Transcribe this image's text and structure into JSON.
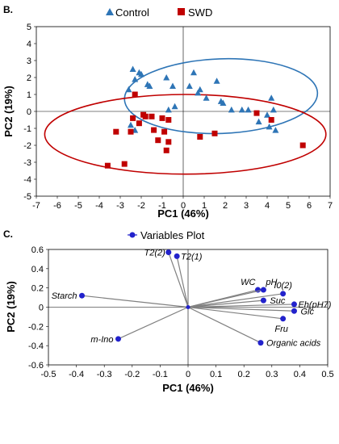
{
  "panel_b": {
    "label": "B."
  },
  "panel_c": {
    "label": "C."
  },
  "chart_data": [
    {
      "type": "scatter",
      "panel": "B.",
      "xlabel": "PC1 (46%)",
      "ylabel": "PC2 (19%)",
      "xlim": [
        -7,
        7
      ],
      "ylim": [
        -5,
        5
      ],
      "xticks": [
        "-7",
        "-6",
        "-5",
        "-4",
        "-3",
        "-2",
        "-1",
        "0",
        "1",
        "2",
        "3",
        "4",
        "5",
        "6",
        "7"
      ],
      "yticks": [
        "-5",
        "-4",
        "-3",
        "-2",
        "-1",
        "0",
        "1",
        "2",
        "3",
        "4",
        "5"
      ],
      "grid": false,
      "legend_position": "top",
      "series": [
        {
          "name": "Control",
          "marker": "triangle",
          "color": "#2e75b6",
          "points": [
            [
              -2.4,
              2.5
            ],
            [
              -2.1,
              2.3
            ],
            [
              -2.0,
              2.2
            ],
            [
              -2.3,
              1.9
            ],
            [
              -1.7,
              1.6
            ],
            [
              -1.6,
              1.5
            ],
            [
              -2.6,
              1.3
            ],
            [
              -0.8,
              2.0
            ],
            [
              -0.5,
              1.5
            ],
            [
              -0.4,
              0.3
            ],
            [
              -0.7,
              0.1
            ],
            [
              0.5,
              2.3
            ],
            [
              0.3,
              1.5
            ],
            [
              0.7,
              1.1
            ],
            [
              0.8,
              1.3
            ],
            [
              1.1,
              0.8
            ],
            [
              1.6,
              1.8
            ],
            [
              1.8,
              0.6
            ],
            [
              1.9,
              0.5
            ],
            [
              2.3,
              0.1
            ],
            [
              2.8,
              0.1
            ],
            [
              3.1,
              0.1
            ],
            [
              3.6,
              -0.6
            ],
            [
              4.0,
              -0.2
            ],
            [
              4.2,
              0.8
            ],
            [
              4.3,
              0.1
            ],
            [
              4.1,
              -0.9
            ],
            [
              4.4,
              -1.1
            ],
            [
              -2.5,
              -0.8
            ],
            [
              -2.3,
              -1.1
            ]
          ]
        },
        {
          "name": "SWD",
          "marker": "square",
          "color": "#c00000",
          "points": [
            [
              -3.6,
              -3.2
            ],
            [
              -2.8,
              -3.1
            ],
            [
              -3.2,
              -1.2
            ],
            [
              -2.5,
              -1.2
            ],
            [
              -2.4,
              -0.4
            ],
            [
              -2.1,
              -0.7
            ],
            [
              -1.9,
              -0.2
            ],
            [
              -1.8,
              -0.3
            ],
            [
              -1.5,
              -0.3
            ],
            [
              -1.4,
              -1.1
            ],
            [
              -1.2,
              -1.7
            ],
            [
              -1.0,
              -0.4
            ],
            [
              -0.9,
              -1.2
            ],
            [
              -0.8,
              -2.3
            ],
            [
              -0.7,
              -1.8
            ],
            [
              -0.7,
              -0.5
            ],
            [
              -2.3,
              1.0
            ],
            [
              0.8,
              -1.5
            ],
            [
              1.5,
              -1.3
            ],
            [
              3.5,
              -0.1
            ],
            [
              4.2,
              -0.5
            ],
            [
              5.7,
              -2.0
            ]
          ]
        }
      ],
      "ellipses": [
        {
          "name": "Control ellipse",
          "color": "#2e75b6",
          "cx": 1.8,
          "cy": 0.9,
          "rx": 4.6,
          "ry": 2.2,
          "rotate_deg": 2
        },
        {
          "name": "SWD ellipse",
          "color": "#c00000",
          "cx": 0.1,
          "cy": -1.35,
          "rx": 6.7,
          "ry": 2.35,
          "rotate_deg": 0
        }
      ]
    },
    {
      "type": "scatter",
      "panel": "C.",
      "title": "Variables Plot",
      "xlabel": "PC1 (46%)",
      "ylabel": "PC2 (19%)",
      "xlim": [
        -0.5,
        0.5
      ],
      "ylim": [
        -0.6,
        0.6
      ],
      "xticks": [
        "-0.5",
        "-0.4",
        "-0.3",
        "-0.2",
        "-0.1",
        "0",
        "0.1",
        "0.2",
        "0.3",
        "0.4",
        "0.5"
      ],
      "yticks": [
        "-0.6",
        "-0.4",
        "-0.2",
        "0",
        "0.2",
        "0.4",
        "0.6"
      ],
      "grid": false,
      "legend_position": "top",
      "marker_color": "#2222cc",
      "line_color": "#808080",
      "vectors": [
        {
          "label": "T2(2)",
          "x": -0.07,
          "y": 0.57
        },
        {
          "label": "T2(1)",
          "x": -0.04,
          "y": 0.53
        },
        {
          "label": "Starch",
          "x": -0.38,
          "y": 0.12
        },
        {
          "label": "m-Ino",
          "x": -0.25,
          "y": -0.33
        },
        {
          "label": "WC",
          "x": 0.25,
          "y": 0.18
        },
        {
          "label": "pH",
          "x": 0.27,
          "y": 0.18
        },
        {
          "label": "I0(2)",
          "x": 0.34,
          "y": 0.14
        },
        {
          "label": "Suc",
          "x": 0.27,
          "y": 0.07
        },
        {
          "label": "Eh(pH7)",
          "x": 0.38,
          "y": 0.03
        },
        {
          "label": "Glc",
          "x": 0.38,
          "y": -0.04
        },
        {
          "label": "Fru",
          "x": 0.34,
          "y": -0.12
        },
        {
          "label": "Organic acids",
          "x": 0.26,
          "y": -0.37
        }
      ]
    }
  ]
}
